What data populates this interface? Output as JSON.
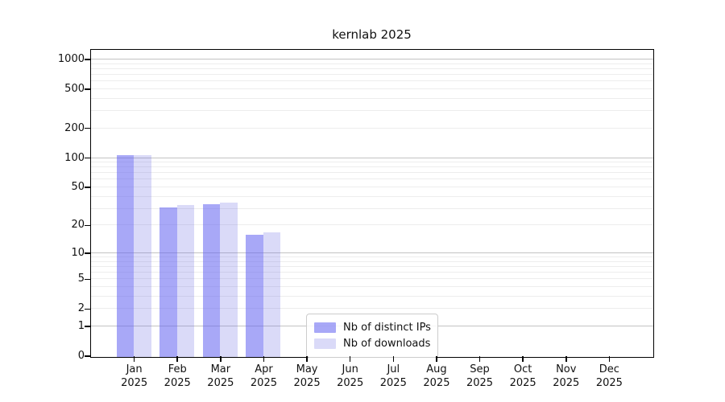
{
  "title": "kernlab 2025",
  "colors": {
    "ips_bar": "#6161F08C",
    "downloads_bar": "#6B6BE340",
    "grid_decade": "#C3C3C3",
    "grid_minor": "#EDEDED",
    "axis": "#000000",
    "legend_border": "#CCCCCC"
  },
  "legend": {
    "items": [
      {
        "label": "Nb of distinct IPs",
        "color": "#6161F08C"
      },
      {
        "label": "Nb of downloads",
        "color": "#6B6BE340"
      }
    ]
  },
  "chart_data": {
    "type": "bar",
    "title": "kernlab 2025",
    "categories": [
      "Jan 2025",
      "Feb 2025",
      "Mar 2025",
      "Apr 2025",
      "May 2025",
      "Jun 2025",
      "Jul 2025",
      "Aug 2025",
      "Sep 2025",
      "Oct 2025",
      "Nov 2025",
      "Dec 2025"
    ],
    "series": [
      {
        "name": "Nb of distinct IPs",
        "values": [
          107,
          31,
          34,
          16,
          0,
          0,
          0,
          0,
          0,
          0,
          0,
          0
        ]
      },
      {
        "name": "Nb of downloads",
        "values": [
          108,
          33,
          35,
          17,
          0,
          0,
          0,
          0,
          0,
          0,
          0,
          0
        ]
      }
    ],
    "yscale": "log1p",
    "yticks": [
      0,
      1,
      2,
      5,
      10,
      20,
      50,
      100,
      200,
      500,
      1000
    ],
    "yticks_decade": [
      1,
      10,
      100,
      1000
    ],
    "yticks_minor_grid": [
      2,
      3,
      4,
      5,
      6,
      7,
      8,
      9,
      20,
      30,
      40,
      50,
      60,
      70,
      80,
      90,
      200,
      300,
      400,
      500,
      600,
      700,
      800,
      900
    ],
    "ylim": [
      0,
      1250
    ],
    "xlabel": "",
    "ylabel": "",
    "grid": true,
    "legend_position": "lower-center-inside"
  }
}
